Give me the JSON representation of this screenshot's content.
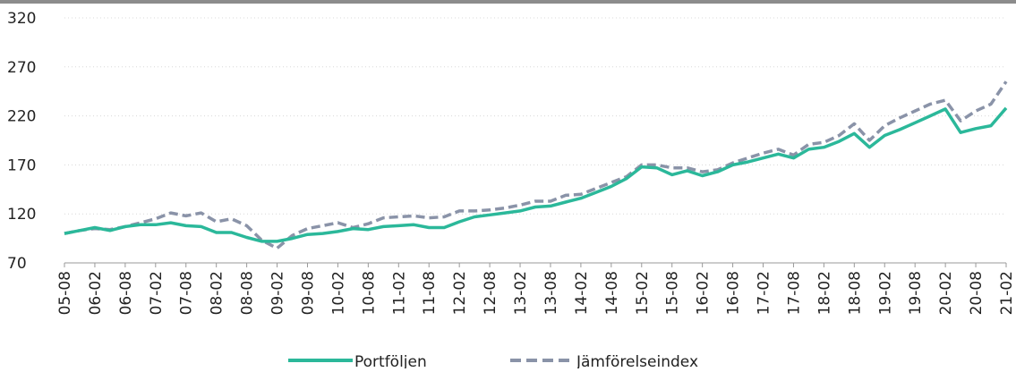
{
  "chart_data": {
    "type": "line",
    "categories": [
      "05-08",
      null,
      "06-02",
      null,
      "06-08",
      null,
      "07-02",
      null,
      "07-08",
      null,
      "08-02",
      null,
      "08-08",
      null,
      "09-02",
      null,
      "09-08",
      null,
      "10-02",
      null,
      "10-08",
      null,
      "11-02",
      null,
      "11-08",
      null,
      "12-02",
      null,
      "12-08",
      null,
      "13-02",
      null,
      "13-08",
      null,
      "14-02",
      null,
      "14-08",
      null,
      "15-02",
      null,
      "15-08",
      null,
      "16-02",
      null,
      "16-08",
      null,
      "17-02",
      null,
      "17-08",
      null,
      "18-02",
      null,
      "18-08",
      null,
      "19-02",
      null,
      "19-08",
      null,
      "20-02",
      null,
      "20-08",
      null,
      "21-02"
    ],
    "series": [
      {
        "name": "Portföljen",
        "color": "#2bb89a",
        "values": [
          100,
          103,
          106,
          103,
          107,
          109,
          109,
          111,
          108,
          107,
          101,
          101,
          96,
          92,
          92,
          95,
          99,
          100,
          102,
          105,
          104,
          107,
          108,
          109,
          106,
          106,
          112,
          117,
          119,
          121,
          123,
          127,
          128,
          132,
          136,
          142,
          148,
          156,
          168,
          167,
          160,
          164,
          159,
          163,
          170,
          173,
          177,
          181,
          177,
          186,
          188,
          194,
          202,
          188,
          200,
          206,
          213,
          220,
          227,
          203,
          207,
          210,
          228
        ]
      },
      {
        "name": "Jämförelseindex",
        "color": "#8a93a8",
        "dashed": true,
        "values": [
          100,
          103,
          105,
          104,
          107,
          111,
          115,
          121,
          118,
          121,
          112,
          115,
          108,
          93,
          85,
          98,
          105,
          108,
          111,
          106,
          110,
          116,
          117,
          118,
          116,
          117,
          123,
          123,
          124,
          126,
          129,
          133,
          133,
          139,
          140,
          146,
          152,
          158,
          170,
          170,
          167,
          167,
          163,
          165,
          172,
          177,
          182,
          186,
          180,
          191,
          193,
          200,
          212,
          195,
          210,
          218,
          225,
          232,
          236,
          215,
          225,
          232,
          255
        ]
      }
    ],
    "ylim": [
      70,
      320
    ],
    "yticks": [
      70,
      120,
      170,
      220,
      270,
      320
    ],
    "grid": true,
    "legend": "bottom"
  }
}
